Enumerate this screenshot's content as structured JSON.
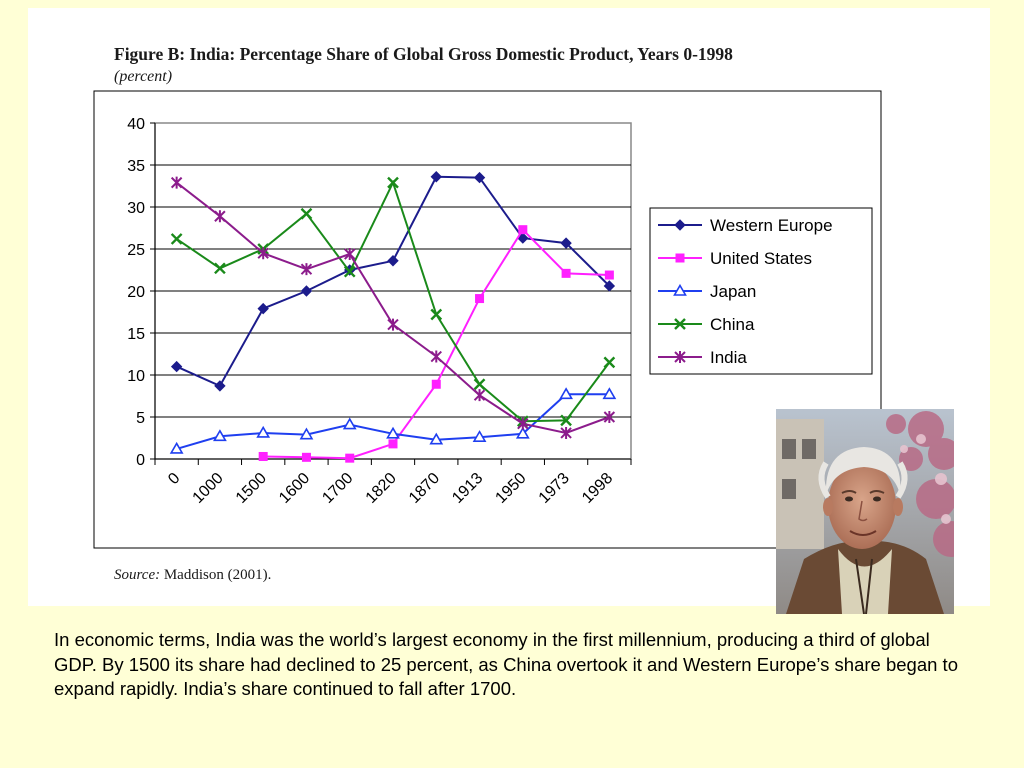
{
  "figure": {
    "title": "Figure B: India: Percentage Share of Global Gross Domestic Product, Years 0-1998",
    "subtitle": "(percent)",
    "source_label": "Source:",
    "source_text": "Maddison (2001)."
  },
  "chart_data": {
    "type": "line",
    "categories": [
      "0",
      "1000",
      "1500",
      "1600",
      "1700",
      "1820",
      "1870",
      "1913",
      "1950",
      "1973",
      "1998"
    ],
    "x_slots": 11,
    "ylim": [
      0,
      40
    ],
    "yticks": [
      0,
      5,
      10,
      15,
      20,
      25,
      30,
      35,
      40
    ],
    "grid": true,
    "legend_position": "right",
    "series": [
      {
        "name": "Western Europe",
        "color": "#1c1c8c",
        "marker": "diamond",
        "values": [
          11.0,
          8.7,
          17.9,
          20.0,
          22.5,
          23.6,
          33.6,
          33.5,
          26.3,
          25.7,
          20.6
        ]
      },
      {
        "name": "United States",
        "color": "#ff20ff",
        "marker": "square",
        "values": [
          null,
          null,
          0.3,
          0.2,
          0.1,
          1.8,
          8.9,
          19.1,
          27.3,
          22.1,
          21.9
        ]
      },
      {
        "name": "Japan",
        "color": "#1f3ff0",
        "marker": "triangle",
        "values": [
          1.2,
          2.7,
          3.1,
          2.9,
          4.1,
          3.0,
          2.3,
          2.6,
          3.0,
          7.7,
          7.7
        ]
      },
      {
        "name": "China",
        "color": "#1a8a1a",
        "marker": "x",
        "values": [
          26.2,
          22.7,
          25.0,
          29.2,
          22.3,
          32.9,
          17.2,
          8.9,
          4.5,
          4.6,
          11.5
        ]
      },
      {
        "name": "India",
        "color": "#8c1c8c",
        "marker": "star",
        "values": [
          32.9,
          28.9,
          24.5,
          22.6,
          24.4,
          16.0,
          12.2,
          7.6,
          4.2,
          3.1,
          5.0
        ]
      }
    ]
  },
  "photo": {
    "subject": "portrait-photo"
  },
  "caption": "In economic terms, India was the world’s largest economy in the first millennium, producing a third of global GDP. By 1500 its share had declined to 25 percent, as China overtook it and Western Europe’s share began to expand rapidly. India’s share continued to fall after 1700."
}
